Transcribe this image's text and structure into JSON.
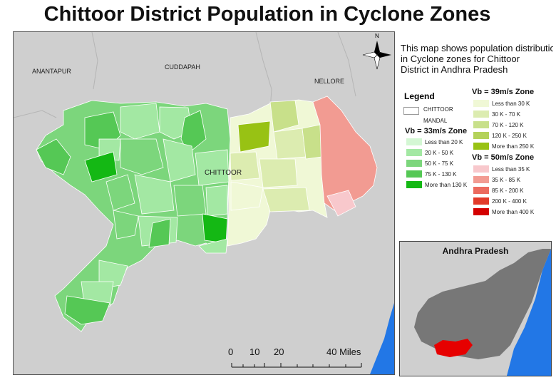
{
  "title": "Chittoor District Population in Cyclone Zones",
  "description": [
    "This map shows population distributio",
    "in Cyclone zones for Chittoor",
    "District in Andhra Pradesh"
  ],
  "map": {
    "labels": {
      "anantapur": "ANANTAPUR",
      "cuddapah": "CUDDAPAH",
      "nellore": "NELLORE",
      "chittoor": "CHITTOOR"
    },
    "north_arrow": "N",
    "scale_bar": {
      "ticks": [
        "0",
        "10",
        "20",
        "40 Miles"
      ]
    }
  },
  "legend": {
    "title": "Legend",
    "mandal_label": [
      "CHITTOOR",
      "MANDAL"
    ],
    "zones": [
      {
        "heading": "Vb = 33m/s Zone",
        "classes": [
          {
            "label": "Less than 20 K",
            "color": "#d4f7d4"
          },
          {
            "label": "20 K - 50 K",
            "color": "#a3e8a3"
          },
          {
            "label": "50 K - 75 K",
            "color": "#7cd67c"
          },
          {
            "label": "75 K - 130 K",
            "color": "#55c855"
          },
          {
            "label": "More than 130 K",
            "color": "#14b814"
          }
        ]
      },
      {
        "heading": "Vb = 39m/s Zone",
        "classes": [
          {
            "label": "Less than 30 K",
            "color": "#f0f8d6"
          },
          {
            "label": "30 K - 70 K",
            "color": "#dcecb0"
          },
          {
            "label": "70 K - 120 K",
            "color": "#c8e08a"
          },
          {
            "label": "120 K - 250 K",
            "color": "#b4d25a"
          },
          {
            "label": "More than 250 K",
            "color": "#98c214"
          }
        ]
      },
      {
        "heading": "Vb = 50m/s Zone",
        "classes": [
          {
            "label": "Less than 35 K",
            "color": "#f8c8cc"
          },
          {
            "label": "35 K - 85 K",
            "color": "#f29b92"
          },
          {
            "label": "85 K - 200 K",
            "color": "#ec6a5e"
          },
          {
            "label": "200 K - 400 K",
            "color": "#e23a2a"
          },
          {
            "label": "More than 400 K",
            "color": "#d40000"
          }
        ]
      }
    ]
  },
  "inset": {
    "title": "Andhra Pradesh"
  },
  "colors": {
    "background": "#cfcfcf",
    "water": "#2277e6",
    "state": "#777777",
    "highlight": "#e60000"
  }
}
